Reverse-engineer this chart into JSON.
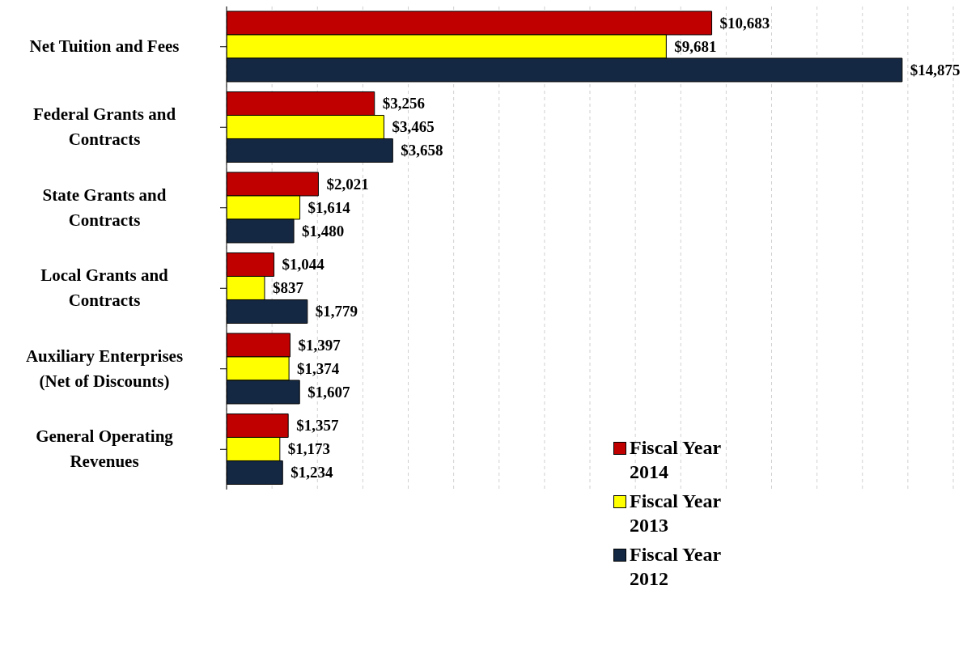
{
  "chart_data": {
    "type": "bar",
    "orientation": "horizontal",
    "categories": [
      "Net Tuition and Fees",
      "Federal Grants and Contracts",
      "State Grants and Contracts",
      "Local Grants and Contracts",
      "Auxiliary Enterprises (Net of Discounts)",
      "General Operating Revenues"
    ],
    "series": [
      {
        "name": "Fiscal Year 2014",
        "color": "#c00000",
        "values": [
          10683,
          3256,
          2021,
          1044,
          1397,
          1357
        ],
        "value_labels": [
          "$10,683",
          "$3,256",
          "$2,021",
          "$1,044",
          "$1,397",
          "$1,357"
        ]
      },
      {
        "name": "Fiscal Year 2013",
        "color": "#ffff00",
        "values": [
          9681,
          3465,
          1614,
          837,
          1374,
          1173
        ],
        "value_labels": [
          "$9,681",
          "$3,465",
          "$1,614",
          "$837",
          "$1,374",
          "$1,173"
        ]
      },
      {
        "name": "Fiscal Year 2012",
        "color": "#142843",
        "values": [
          14875,
          3658,
          1480,
          1779,
          1607,
          1234
        ],
        "value_labels": [
          "$14,875",
          "$3,658",
          "$1,480",
          "$1,779",
          "$1,607",
          "$1,234"
        ]
      }
    ],
    "xlim": [
      0,
      16000
    ],
    "xticks": [
      {
        "value": 0,
        "label": null
      },
      {
        "value": 1000,
        "label": null
      },
      {
        "value": 2000,
        "label": null
      },
      {
        "value": 3000,
        "label": null
      },
      {
        "value": 4000,
        "label": null
      },
      {
        "value": 5000,
        "label": null
      },
      {
        "value": 6000,
        "label": null
      },
      {
        "value": 7000,
        "label": null
      },
      {
        "value": 8000,
        "label": null
      },
      {
        "value": 9000,
        "label": null
      },
      {
        "value": 10000,
        "label": null
      },
      {
        "value": 11000,
        "label": null
      },
      {
        "value": 12000,
        "label": null
      },
      {
        "value": 13000,
        "label": null
      },
      {
        "value": 14000,
        "label": null
      },
      {
        "value": 15000,
        "label": null
      },
      {
        "value": 16000,
        "label": null
      }
    ],
    "tick_labels": "y",
    "grid": "x",
    "legend": "bottom right"
  }
}
